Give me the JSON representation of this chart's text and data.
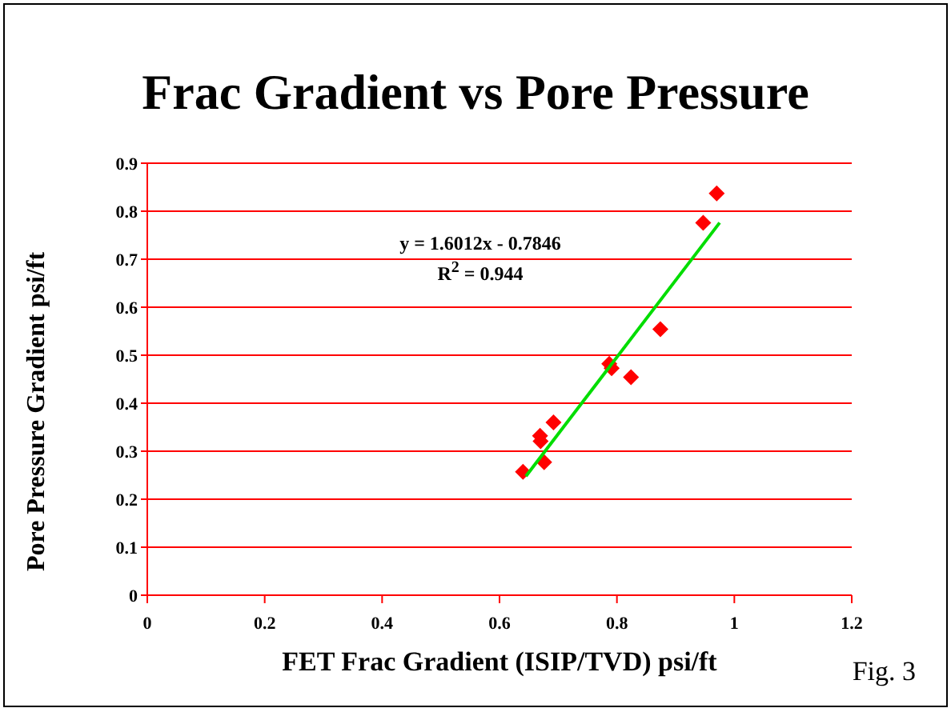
{
  "chart_data": {
    "type": "scatter",
    "title": "Frac Gradient vs Pore Pressure",
    "xlabel": "FET Frac Gradient (ISIP/TVD) psi/ft",
    "ylabel": "Pore Pressure Gradient psi/ft",
    "annotations": [
      "y = 1.6012x - 0.7846",
      "R$^{2}$ = 0.944",
      "Fig. 3"
    ],
    "series": [
      {
        "color": "#ff0000",
        "marker": "diamond",
        "x": [
          0.64,
          0.676,
          0.669,
          0.67,
          0.692,
          0.787,
          0.791,
          0.824,
          0.874,
          0.947,
          0.97
        ],
        "values": [
          0.257,
          0.277,
          0.332,
          0.321,
          0.36,
          0.482,
          0.473,
          0.454,
          0.554,
          0.776,
          0.837
        ]
      },
      {
        "type": "line",
        "color": "#00dd00",
        "marker": "none",
        "x": [
          0.645,
          0.975
        ],
        "values": [
          0.248,
          0.776
        ]
      }
    ],
    "xlim": [
      0,
      1.2
    ],
    "xticks": [
      0,
      0.2,
      0.4,
      0.6,
      0.8,
      1,
      1.2
    ],
    "ylim": [
      0,
      0.9
    ],
    "yticks": [
      0,
      0.1,
      0.2,
      0.3,
      0.4,
      0.5,
      0.6,
      0.7,
      0.8,
      0.9
    ],
    "grid": "y",
    "legend": false
  }
}
